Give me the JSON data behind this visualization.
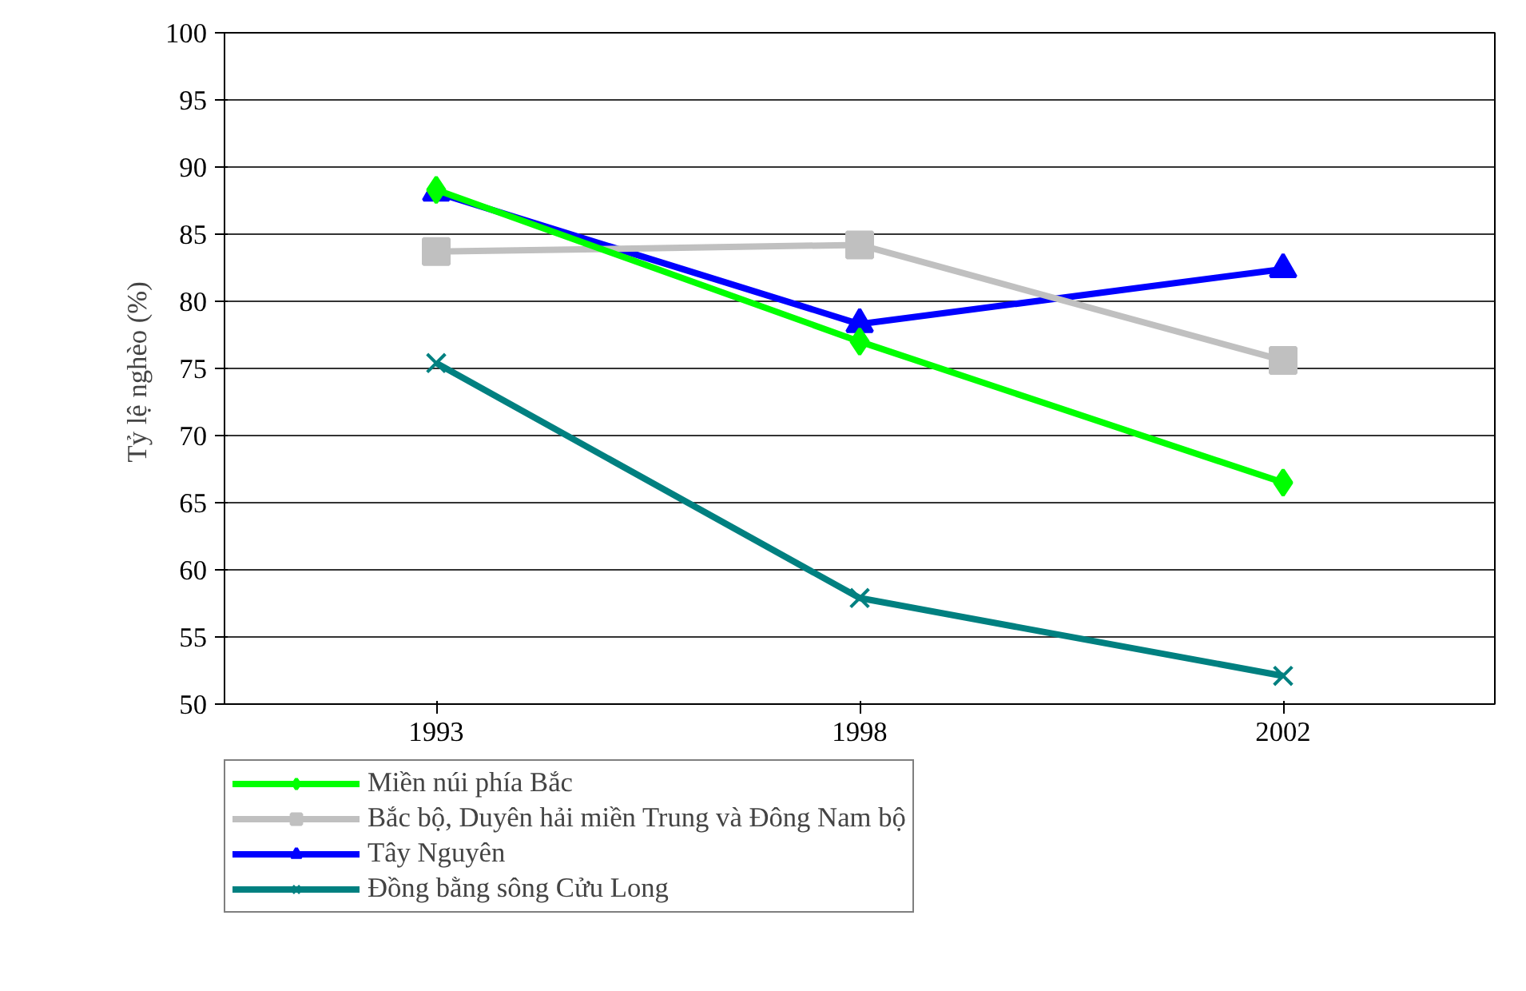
{
  "chart_data": {
    "type": "line",
    "ylabel": "Tỷ lệ nghèo  (%)",
    "categories": [
      "1993",
      "1998",
      "2002"
    ],
    "ylim": [
      50,
      100
    ],
    "yticks": [
      50,
      55,
      60,
      65,
      70,
      75,
      80,
      85,
      90,
      95,
      100
    ],
    "grid": "y",
    "legend": "bottom",
    "line_style": "solid",
    "series": [
      {
        "name": "Miền núi phía Bắc",
        "color": "#00ff00",
        "marker": "diamond",
        "values": [
          88.3,
          77.0,
          66.5
        ]
      },
      {
        "name": "Bắc bộ, Duyên hải miền Trung và Đông Nam bộ",
        "color": "#c0c0c0",
        "marker": "square",
        "values": [
          83.7,
          84.2,
          75.6
        ]
      },
      {
        "name": "Tây Nguyên",
        "color": "#0000ff",
        "marker": "triangle",
        "values": [
          88.1,
          78.3,
          82.4
        ]
      },
      {
        "name": "Đồng bằng sông Cửu Long",
        "color": "#008080",
        "marker": "cross",
        "values": [
          75.4,
          57.9,
          52.1
        ]
      }
    ]
  }
}
